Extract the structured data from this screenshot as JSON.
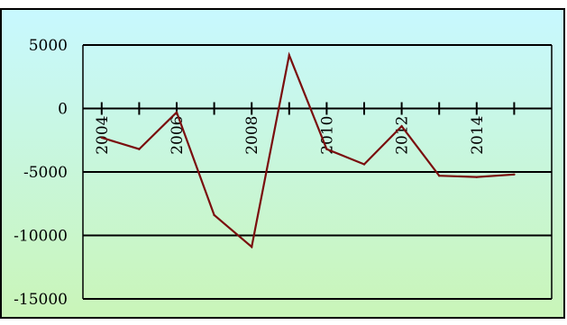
{
  "chart_data": {
    "type": "line",
    "title": "",
    "xlabel": "",
    "ylabel": "",
    "x": [
      2004,
      2005,
      2006,
      2007,
      2008,
      2009,
      2010,
      2011,
      2012,
      2013,
      2014,
      2015
    ],
    "series": [
      {
        "values": [
          -2300,
          -3200,
          -300,
          -8400,
          -10900,
          4200,
          -3200,
          -4400,
          -1400,
          -5300,
          -5400,
          -5200
        ]
      }
    ],
    "xlim": [
      2003.5,
      2016
    ],
    "ylim": [
      -15000,
      5000
    ],
    "yticks": [
      "5000",
      "0",
      "-5000",
      "-10000",
      "-15000"
    ],
    "yticks_values": [
      5000,
      0,
      -5000,
      -10000,
      -15000
    ],
    "xticks": [
      "2004",
      "2006",
      "2008",
      "2010",
      "2012",
      "2014"
    ],
    "xticks_values": [
      2004,
      2006,
      2008,
      2010,
      2012,
      2014
    ],
    "grid": "horizontal",
    "legend": "none",
    "colors": {
      "line": "#7a0e0e",
      "frame": "#000000",
      "background_top": "#c8f8ff",
      "background_bottom": "#c9f5b8"
    }
  }
}
